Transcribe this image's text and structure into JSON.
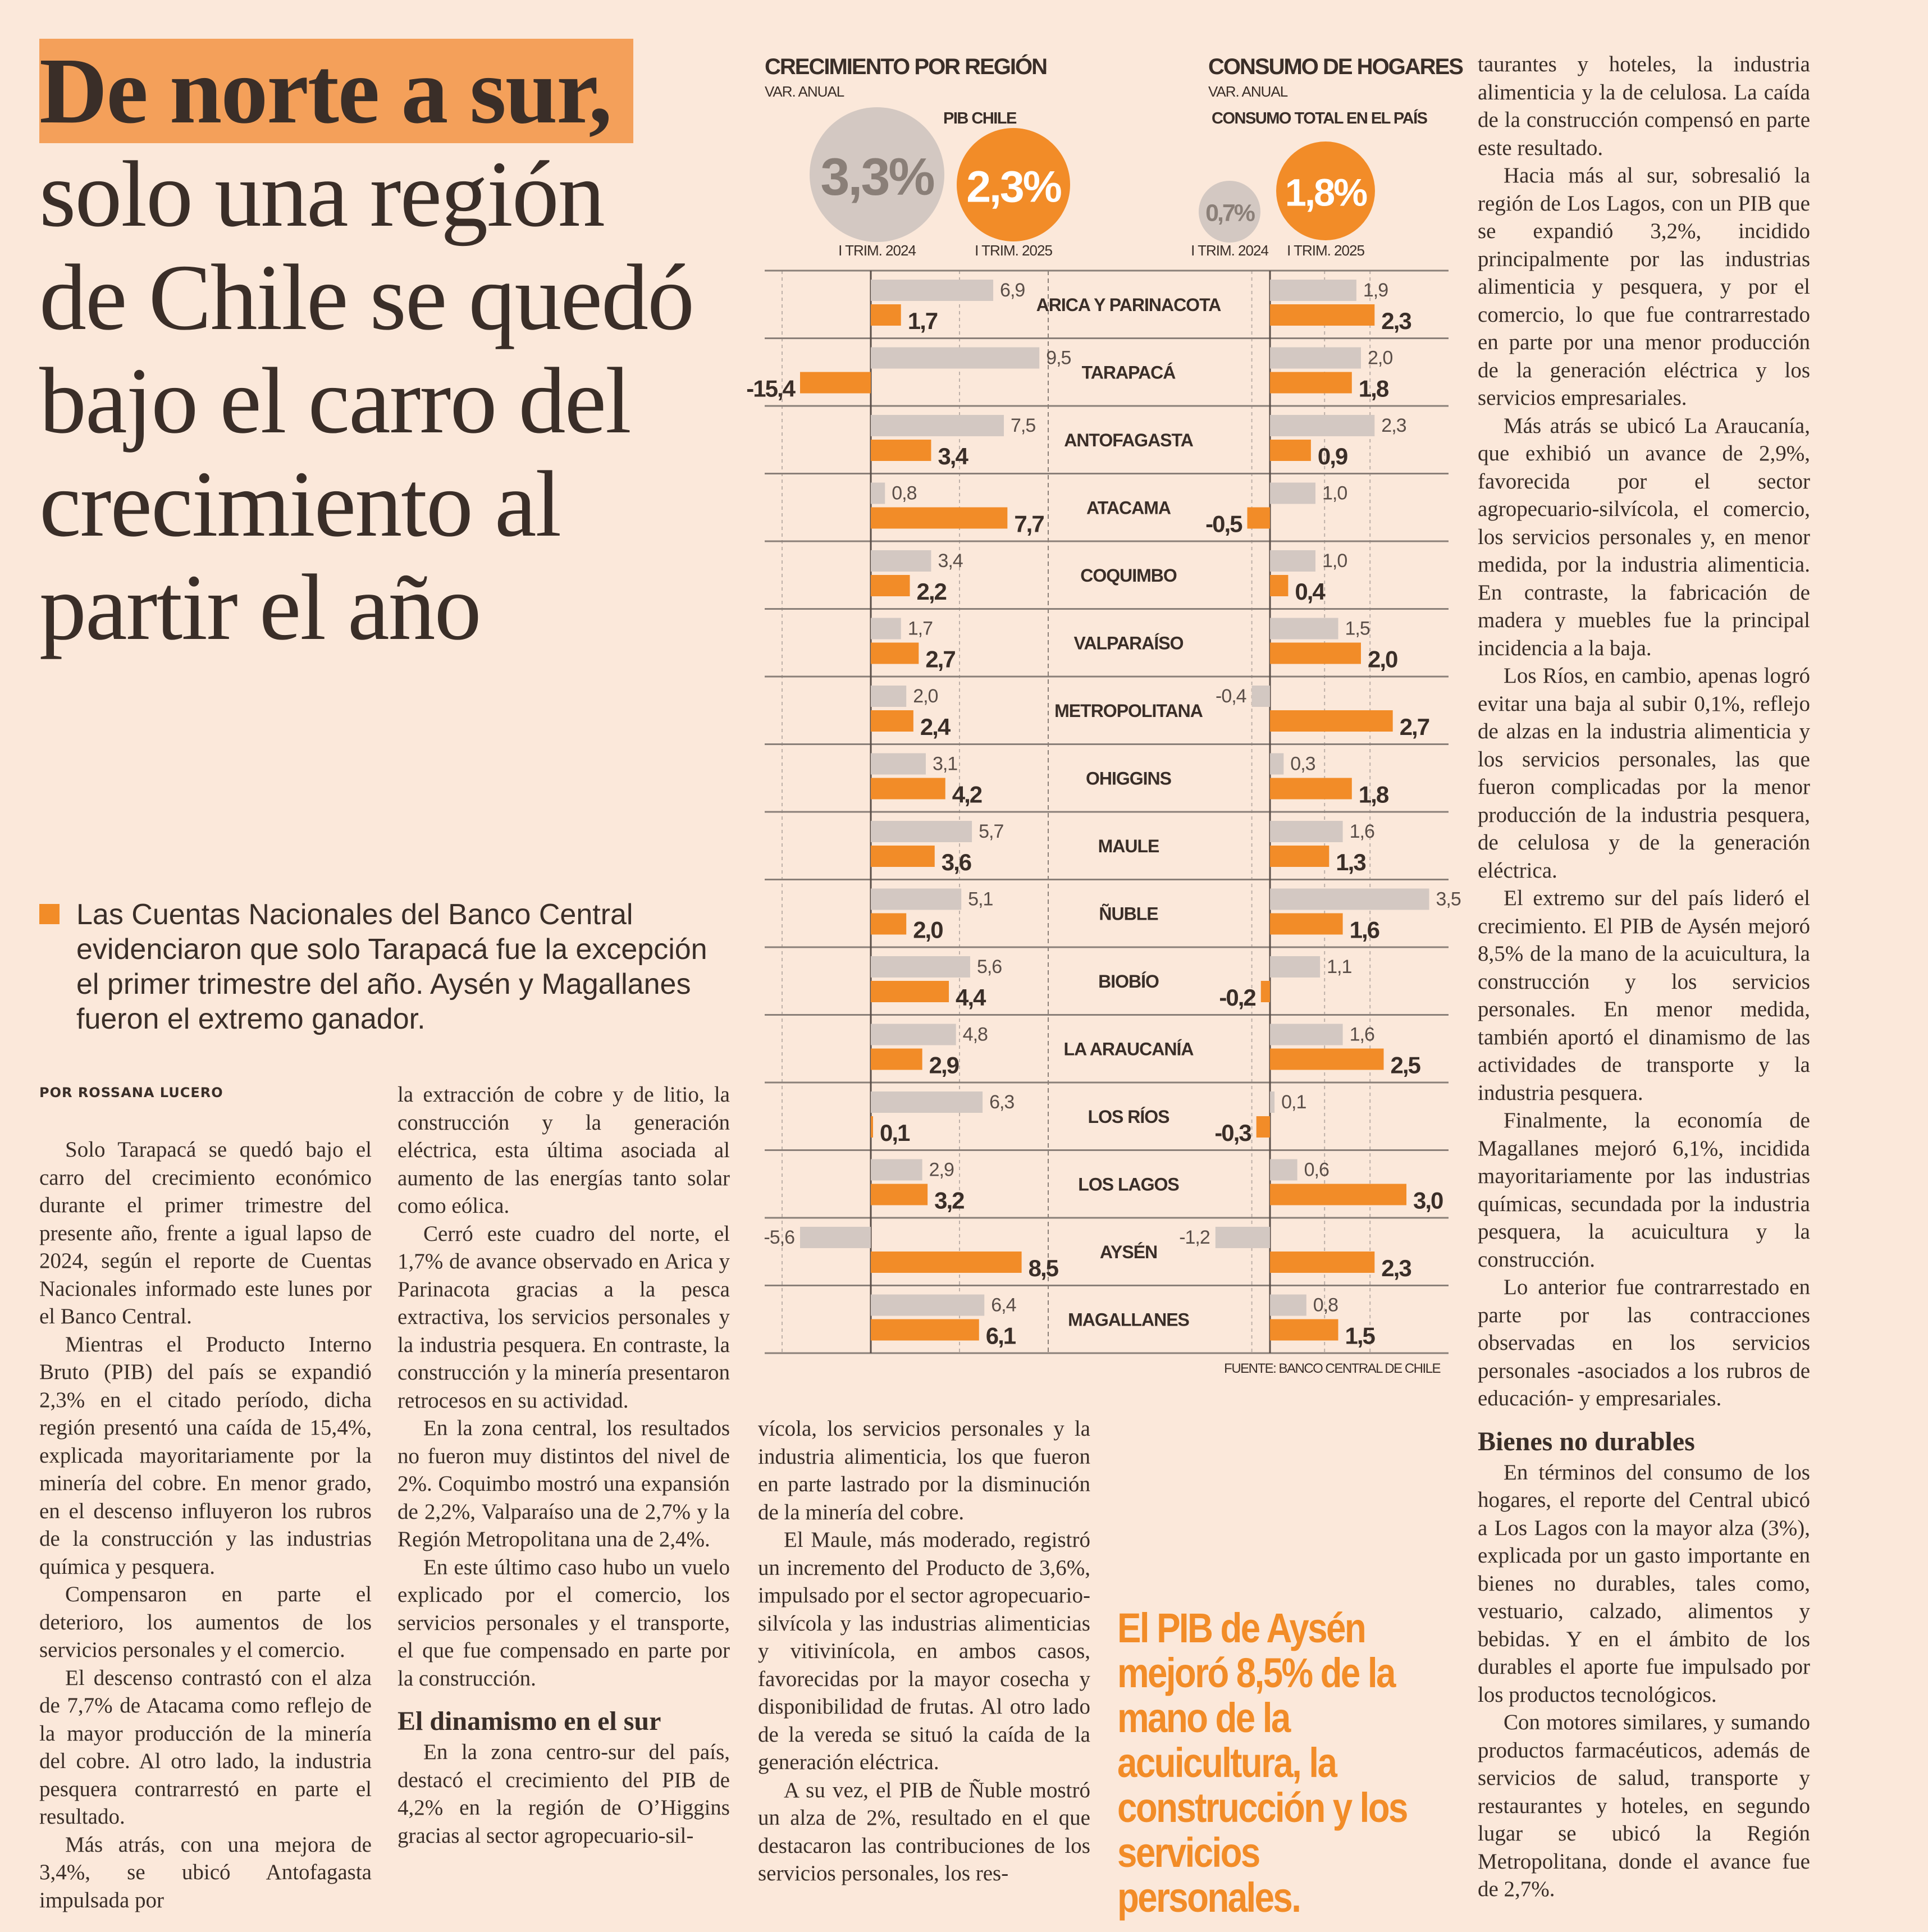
{
  "headline": {
    "highlight": "De norte a sur,",
    "rest": " solo una región de Chile se quedó bajo el carro del crecimiento al partir el año"
  },
  "deck": "Las Cuentas Nacionales del Banco Central evidenciaron que solo Tarapacá fue la excepción el primer trimestre del año. Aysén y Magallanes fueron el extremo ganador.",
  "byline": "POR ROSSANA LUCERO",
  "columns": {
    "c1": [
      "Solo Tarapacá se quedó bajo el carro del crecimiento económico durante el primer trimestre del presente año, frente a igual lapso de 2024, según el reporte de Cuentas Nacionales informado este lunes por el Banco Central.",
      "Mientras el Producto Interno Bruto (PIB) del país se expandió 2,3% en el citado período, dicha región presentó una caída de 15,4%, explicada mayoritariamente por la minería del cobre. En menor grado, en el descenso influyeron los rubros de la construcción y las industrias química y pesquera.",
      "Compensaron en parte el deterioro, los aumentos de los servicios personales y el comercio.",
      "El descenso contrastó con el alza de 7,7% de Atacama como reflejo de la mayor producción de la minería del cobre. Al otro lado, la industria pesquera contrarrestó en parte el resultado.",
      "Más atrás, con una mejora de 3,4%, se ubicó Antofagasta impulsada por"
    ],
    "c2_first": "la extracción de cobre y de litio, la construcción y la generación eléctrica, esta última asociada al aumento de las energías tanto solar como eólica.",
    "c2": [
      "Cerró este cuadro del norte, el 1,7% de avance observado en Arica y Parinacota gracias a la pesca extractiva, los servicios personales y la industria pesquera. En contraste, la construcción y la minería presentaron retrocesos en su actividad.",
      "En la zona central, los resultados no fueron muy distintos del nivel de 2%. Coquimbo mostró una expansión de 2,2%, Valparaíso una de 2,7% y la Región Metropolitana una de 2,4%.",
      "En este último caso hubo un vuelo explicado por el comercio, los servicios personales y el transporte, el que fue compensado en parte por la construcción."
    ],
    "c2_subhead": "El dinamismo en el sur",
    "c2_after": "En la zona centro-sur del país, destacó el crecimiento del PIB de 4,2% en la región de O’Higgins gracias al sector agropecuario-sil-",
    "c3_first": "vícola, los servicios personales y la industria alimenticia, los que fueron en parte lastrado por la disminución de la minería del cobre.",
    "c3": [
      "El Maule, más moderado, registró un incremento del Producto de 3,6%, impulsado por el sector agropecuario-silvícola y las industrias alimenticias y vitivinícola, en ambos casos, favorecidas por la mayor cosecha y disponibilidad de frutas. Al otro lado de la vereda se situó la caída de la generación eléctrica.",
      "A su vez, el PIB de Ñuble mostró un alza de 2%, resultado en el que destacaron las contribuciones de los servicios personales, los res-"
    ],
    "c4_first": "taurantes y hoteles, la industria alimenticia y la de celulosa. La caída de la construcción compensó en parte este resultado.",
    "c4": [
      "Hacia más al sur, sobresalió la región de Los Lagos, con un PIB que se expandió 3,2%, incidido principalmente por las industrias alimenticia y pesquera, y por el comercio, lo que fue contrarrestado en parte por una menor producción de la generación eléctrica y los servicios empresariales.",
      "Más atrás se ubicó La Araucanía, que exhibió un avance de 2,9%, favorecida por el sector agropecuario-silvícola, el comercio, los servicios personales y, en menor medida, por la industria alimenticia. En contraste, la fabricación de madera y muebles fue la principal incidencia a la baja.",
      "Los Ríos, en cambio, apenas logró evitar una baja al subir 0,1%, reflejo de alzas en la industria alimenticia y los servicios personales, las que fueron complicadas por la menor producción de la industria pesquera, de celulosa y de la generación eléctrica.",
      "El extremo sur del país lideró el crecimiento. El PIB de Aysén mejoró 8,5% de la mano de la acuicultura, la construcción y los servicios personales. En menor medida, también aportó el dinamismo de las actividades de transporte y la industria pesquera.",
      "Finalmente, la economía de Magallanes mejoró 6,1%, incidida mayoritariamente por las industrias químicas, secundada por la industria pesquera, la acuicultura y la construcción.",
      "Lo anterior fue contrarrestado en parte por las contracciones observadas en los servicios personales -asociados a los rubros de educación- y empresariales."
    ],
    "c4_subhead": "Bienes no durables",
    "c4_after": [
      "En términos del consumo de los hogares, el reporte del Central ubicó a Los Lagos con la mayor alza (3%), explicada por un gasto importante en bienes no durables, tales como, vestuario, calzado, alimentos y bebidas. Y en el ámbito de los durables el aporte fue impulsado por los productos tecnológicos.",
      "Con motores similares, y sumando productos farmacéuticos, además de servicios de salud, transporte y restaurantes y hoteles, en segundo lugar se ubicó la Región Metropolitana, donde el avance fue de 2,7%."
    ]
  },
  "pull_quote": "El PIB de Aysén mejoró 8,5% de la mano de la acuicultura, la construcción y los servicios personales.",
  "colors": {
    "background": "#fbe8da",
    "orange": "#f28c28",
    "gray": "#d3c8c2",
    "text": "#3a2e28"
  },
  "chart_data": {
    "type": "bar",
    "orientation": "horizontal",
    "source": "FUENTE: BANCO CENTRAL DE CHILE",
    "categories": [
      "ARICA Y PARINACOTA",
      "TARAPACÁ",
      "ANTOFAGASTA",
      "ATACAMA",
      "COQUIMBO",
      "VALPARAÍSO",
      "METROPOLITANA",
      "OHIGGINS",
      "MAULE",
      "ÑUBLE",
      "BIOBÍO",
      "LA ARAUCANÍA",
      "LOS RÍOS",
      "LOS LAGOS",
      "AYSÉN",
      "MAGALLANES"
    ],
    "panels": [
      {
        "title": "CRECIMIENTO POR REGIÓN",
        "subtitle": "VAR. ANUAL",
        "summary_title": "PIB CHILE",
        "summary": [
          {
            "label": "I TRIM. 2024",
            "value": "3,3%"
          },
          {
            "label": "I TRIM. 2025",
            "value": "2,3%"
          }
        ],
        "series": [
          {
            "period": "I TRIM. 2024",
            "color": "#d3c8c2",
            "values": [
              6.9,
              9.5,
              7.5,
              0.8,
              3.4,
              1.7,
              2.0,
              3.1,
              5.7,
              5.1,
              5.6,
              4.8,
              6.3,
              2.9,
              -5.6,
              6.4
            ]
          },
          {
            "period": "I TRIM. 2025",
            "color": "#f28c28",
            "values": [
              1.7,
              -15.4,
              3.4,
              7.7,
              2.2,
              2.7,
              2.4,
              4.2,
              3.6,
              2.0,
              4.4,
              2.9,
              0.1,
              3.2,
              8.5,
              6.1
            ]
          }
        ]
      },
      {
        "title": "CONSUMO DE HOGARES",
        "subtitle": "VAR. ANUAL",
        "summary_title": "CONSUMO TOTAL EN EL PAÍS",
        "summary": [
          {
            "label": "I TRIM. 2024",
            "value": "0,7%"
          },
          {
            "label": "I TRIM. 2025",
            "value": "1,8%"
          }
        ],
        "series": [
          {
            "period": "I TRIM. 2024",
            "color": "#d3c8c2",
            "values": [
              1.9,
              2.0,
              2.3,
              1.0,
              1.0,
              1.5,
              -0.4,
              0.3,
              1.6,
              3.5,
              1.1,
              1.6,
              0.1,
              0.6,
              -1.2,
              0.8
            ]
          },
          {
            "period": "I TRIM. 2025",
            "color": "#f28c28",
            "values": [
              2.3,
              1.8,
              0.9,
              -0.5,
              0.4,
              2.0,
              2.7,
              1.8,
              1.3,
              1.6,
              -0.2,
              2.5,
              -0.3,
              3.0,
              2.3,
              1.5
            ]
          }
        ]
      }
    ]
  }
}
